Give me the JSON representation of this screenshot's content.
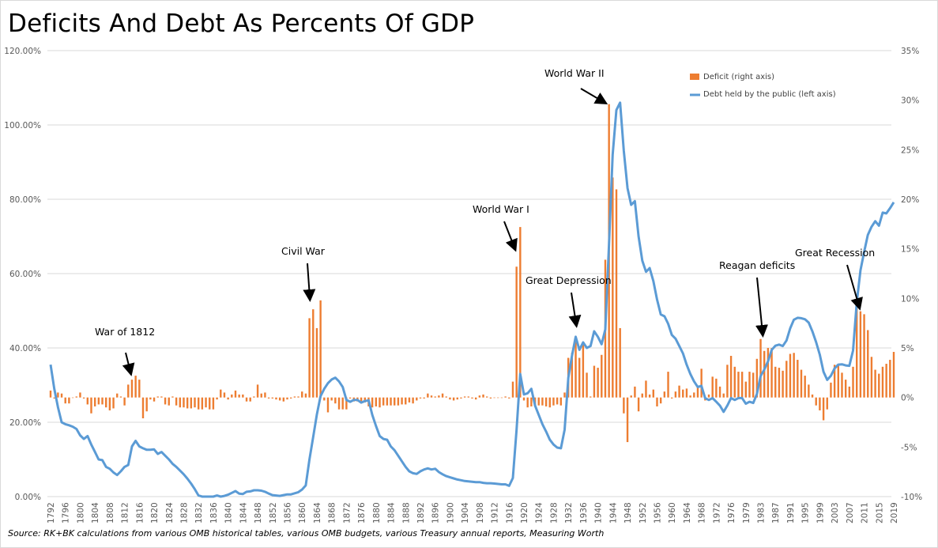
{
  "title": "Deficits And Debt As Percents Of GDP",
  "source": "Source:  RK+BK calculations from various OMB historical tables, various OMB budgets, various Treasury annual reports,  Measuring Worth",
  "chart_data": {
    "type": "bar+line",
    "title": "Deficits And Debt As Percents Of GDP",
    "left_axis": {
      "min": 0,
      "max": 120,
      "step": 20,
      "labels": [
        "0.00%",
        "20.00%",
        "40.00%",
        "60.00%",
        "80.00%",
        "100.00%",
        "120.00%"
      ]
    },
    "right_axis": {
      "min": -10,
      "max": 35,
      "step": 5,
      "labels": [
        "-10%",
        "-5%",
        "0%",
        "5%",
        "10%",
        "15%",
        "20%",
        "25%",
        "30%",
        "35%"
      ]
    },
    "x_tick_labels": [
      "1792",
      "1796",
      "1800",
      "1804",
      "1808",
      "1812",
      "1816",
      "1820",
      "1824",
      "1828",
      "1832",
      "1836",
      "1840",
      "1844",
      "1848",
      "1852",
      "1856",
      "1860",
      "1864",
      "1868",
      "1872",
      "1876",
      "1880",
      "1884",
      "1888",
      "1892",
      "1896",
      "1900",
      "1904",
      "1908",
      "1912",
      "1916",
      "1920",
      "1924",
      "1928",
      "1932",
      "1936",
      "1940",
      "1944",
      "1948",
      "1952",
      "1956",
      "1960",
      "1964",
      "1968",
      "1972",
      "1976",
      "1979",
      "1983",
      "1987",
      "1991",
      "1995",
      "1999",
      "2003",
      "2007",
      "2011",
      "2015",
      "2019"
    ],
    "x": [
      1792,
      1793,
      1794,
      1795,
      1796,
      1797,
      1798,
      1799,
      1800,
      1801,
      1802,
      1803,
      1804,
      1805,
      1806,
      1807,
      1808,
      1809,
      1810,
      1811,
      1812,
      1813,
      1814,
      1815,
      1816,
      1817,
      1818,
      1819,
      1820,
      1821,
      1822,
      1823,
      1824,
      1825,
      1826,
      1827,
      1828,
      1829,
      1830,
      1831,
      1832,
      1833,
      1834,
      1835,
      1836,
      1837,
      1838,
      1839,
      1840,
      1841,
      1842,
      1843,
      1844,
      1845,
      1846,
      1847,
      1848,
      1849,
      1850,
      1851,
      1852,
      1853,
      1854,
      1855,
      1856,
      1857,
      1858,
      1859,
      1860,
      1861,
      1862,
      1863,
      1864,
      1865,
      1866,
      1867,
      1868,
      1869,
      1870,
      1871,
      1872,
      1873,
      1874,
      1875,
      1876,
      1877,
      1878,
      1879,
      1880,
      1881,
      1882,
      1883,
      1884,
      1885,
      1886,
      1887,
      1888,
      1889,
      1890,
      1891,
      1892,
      1893,
      1894,
      1895,
      1896,
      1897,
      1898,
      1899,
      1900,
      1901,
      1902,
      1903,
      1904,
      1905,
      1906,
      1907,
      1908,
      1909,
      1910,
      1911,
      1912,
      1913,
      1914,
      1915,
      1916,
      1917,
      1918,
      1919,
      1920,
      1921,
      1922,
      1923,
      1924,
      1925,
      1926,
      1927,
      1928,
      1929,
      1930,
      1931,
      1932,
      1933,
      1934,
      1935,
      1936,
      1937,
      1938,
      1939,
      1940,
      1941,
      1942,
      1943,
      1944,
      1945,
      1946,
      1947,
      1948,
      1949,
      1950,
      1951,
      1952,
      1953,
      1954,
      1955,
      1956,
      1957,
      1958,
      1959,
      1960,
      1961,
      1962,
      1963,
      1964,
      1965,
      1966,
      1967,
      1968,
      1969,
      1970,
      1971,
      1972,
      1973,
      1974,
      1975,
      1976,
      1976.5,
      1977,
      1978,
      1979,
      1980,
      1981,
      1982,
      1983,
      1984,
      1985,
      1986,
      1987,
      1988,
      1989,
      1990,
      1991,
      1992,
      1993,
      1994,
      1995,
      1996,
      1997,
      1998,
      1999,
      2000,
      2001,
      2002,
      2003,
      2004,
      2005,
      2006,
      2007,
      2008,
      2009,
      2010,
      2011,
      2012,
      2013,
      2014,
      2015,
      2016,
      2017,
      2018,
      2019
    ],
    "series": [
      {
        "name": "Deficit (right axis)",
        "type": "bar",
        "axis": "right",
        "color": "#ED7D31",
        "values": [
          0.7,
          -0.1,
          0.5,
          0.4,
          -0.6,
          -0.6,
          0.0,
          0.1,
          0.5,
          -0.1,
          -0.7,
          -1.6,
          -0.9,
          -0.7,
          -0.7,
          -1.0,
          -1.3,
          -1.1,
          0.4,
          0.1,
          -0.8,
          1.3,
          1.8,
          2.2,
          1.8,
          -2.1,
          -1.4,
          -0.2,
          -0.4,
          0.1,
          0.1,
          -0.7,
          -0.8,
          0.1,
          -0.8,
          -1.0,
          -1.0,
          -1.1,
          -1.1,
          -1.0,
          -1.2,
          -1.2,
          -1.0,
          -1.2,
          -1.2,
          -0.2,
          0.8,
          0.5,
          -0.2,
          0.3,
          0.7,
          0.3,
          0.3,
          -0.4,
          -0.4,
          0.1,
          1.3,
          0.4,
          0.5,
          -0.1,
          -0.1,
          -0.2,
          -0.3,
          -0.4,
          -0.2,
          -0.1,
          0.1,
          0.1,
          0.6,
          0.4,
          8.0,
          8.9,
          7.0,
          9.8,
          -0.3,
          -1.5,
          -0.3,
          -0.6,
          -1.2,
          -1.2,
          -1.2,
          -0.1,
          -0.4,
          -0.4,
          -0.5,
          -0.5,
          -0.9,
          -1.0,
          -0.9,
          -1.0,
          -0.8,
          -0.8,
          -0.8,
          -0.8,
          -0.8,
          -0.7,
          -0.7,
          -0.5,
          -0.6,
          -0.3,
          -0.1,
          -0.1,
          0.4,
          0.2,
          0.1,
          0.2,
          0.4,
          0.1,
          -0.2,
          -0.3,
          -0.2,
          -0.1,
          0.1,
          0.1,
          -0.1,
          -0.2,
          0.2,
          0.3,
          0.1,
          -0.1,
          0.0,
          0.0,
          0.0,
          0.1,
          -0.1,
          1.6,
          13.2,
          17.2,
          -0.3,
          -1.0,
          -0.9,
          -0.9,
          -0.8,
          -0.8,
          -0.9,
          -1.0,
          -0.8,
          -0.7,
          -0.8,
          0.5,
          4.0,
          4.5,
          5.8,
          4.0,
          5.4,
          2.5,
          0.1,
          3.2,
          3.0,
          4.3,
          13.9,
          29.6,
          22.2,
          21.0,
          7.0,
          -1.6,
          -4.5,
          0.2,
          1.1,
          -1.4,
          0.4,
          1.7,
          0.3,
          0.8,
          -0.9,
          -0.6,
          0.6,
          2.6,
          -0.1,
          0.6,
          1.2,
          0.8,
          0.9,
          0.2,
          0.5,
          1.1,
          2.9,
          -0.3,
          0.3,
          2.1,
          1.9,
          1.1,
          0.4,
          3.3,
          4.2,
          3.1,
          2.6,
          2.6,
          1.6,
          2.6,
          2.5,
          3.9,
          5.9,
          4.7,
          5.0,
          5.0,
          3.1,
          3.0,
          2.7,
          3.7,
          4.4,
          4.5,
          3.8,
          2.8,
          2.2,
          1.3,
          0.3,
          -0.8,
          -1.3,
          -2.3,
          -1.2,
          1.5,
          3.3,
          3.4,
          2.5,
          1.8,
          1.1,
          3.1,
          9.2,
          8.7,
          8.4,
          6.8,
          4.1,
          2.8,
          2.4,
          3.1,
          3.4,
          3.8,
          4.6
        ]
      },
      {
        "name": "Debt held by the public (left axis)",
        "type": "line",
        "axis": "left",
        "color": "#5B9BD5",
        "values": [
          35.5,
          29,
          24,
          20,
          19.5,
          19.2,
          18.8,
          18.2,
          16.5,
          15.5,
          16.3,
          14,
          12,
          10,
          9.8,
          8,
          7.5,
          6.5,
          5.8,
          6.8,
          8,
          8.5,
          13.5,
          15,
          13.5,
          13,
          12.6,
          12.6,
          12.7,
          11.5,
          12,
          11,
          10,
          8.8,
          8,
          7,
          6,
          4.8,
          3.5,
          2,
          0.3,
          0,
          0,
          0,
          0,
          0.3,
          0,
          0.2,
          0.5,
          1.0,
          1.5,
          0.8,
          0.7,
          1.3,
          1.4,
          1.7,
          1.7,
          1.6,
          1.3,
          0.8,
          0.4,
          0.3,
          0.2,
          0.4,
          0.6,
          0.6,
          0.9,
          1.2,
          1.9,
          3,
          10,
          16,
          22,
          27,
          29,
          30.5,
          31.5,
          32,
          31,
          29.5,
          26,
          25.5,
          26,
          26,
          25.3,
          25.7,
          25.9,
          22,
          19,
          16.3,
          15.5,
          15.3,
          13.5,
          12.5,
          11,
          9.5,
          8,
          6.8,
          6.3,
          6.1,
          6.8,
          7.3,
          7.6,
          7.3,
          7.5,
          6.6,
          6.0,
          5.5,
          5.2,
          4.9,
          4.6,
          4.4,
          4.2,
          4.1,
          4.0,
          3.9,
          3.9,
          3.7,
          3.6,
          3.6,
          3.5,
          3.4,
          3.3,
          3.3,
          2.9,
          5,
          18,
          33,
          27.5,
          27.8,
          29,
          24.5,
          22,
          19.5,
          17.5,
          15.3,
          14,
          13.2,
          13,
          18,
          32,
          38,
          43,
          39.5,
          41.5,
          40,
          40.5,
          44.5,
          43,
          41,
          45,
          68,
          92,
          104,
          106,
          93,
          83,
          78.5,
          79.5,
          70,
          63.5,
          60.5,
          61.5,
          58,
          53,
          49,
          48.5,
          46.5,
          43.5,
          42.5,
          40.5,
          38.5,
          35.5,
          33,
          31,
          29.5,
          29.8,
          26.5,
          26,
          26.5,
          25.5,
          24.5,
          22.8,
          24.5,
          26.5,
          26,
          26.5,
          26.5,
          25,
          25.5,
          25.2,
          27.6,
          32.4,
          34.2,
          36.4,
          39.5,
          40.6,
          40.9,
          40.5,
          42,
          45.3,
          47.6,
          48.1,
          48.0,
          47.7,
          46.8,
          44.5,
          41.6,
          38.2,
          33.6,
          31.4,
          32.5,
          34.5,
          35.5,
          35.6,
          35.3,
          35.2,
          39.3,
          52.3,
          60.9,
          65.9,
          70.4,
          72.6,
          74.1,
          72.9,
          76.4,
          76.2,
          77.6,
          79.2
        ]
      }
    ],
    "legend": {
      "placement": "top-right",
      "entries": [
        "Deficit (right axis)",
        "Debt held by the public (left axis)"
      ]
    },
    "annotations": [
      {
        "text": "War of 1812",
        "year": 1815
      },
      {
        "text": "Civil War",
        "year": 1864
      },
      {
        "text": "World War I",
        "year": 1918
      },
      {
        "text": "World War II",
        "year": 1943
      },
      {
        "text": "Great Depression",
        "year": 1934
      },
      {
        "text": "Reagan deficits",
        "year": 1983
      },
      {
        "text": "Great Recession",
        "year": 2009
      }
    ],
    "grid": true
  }
}
